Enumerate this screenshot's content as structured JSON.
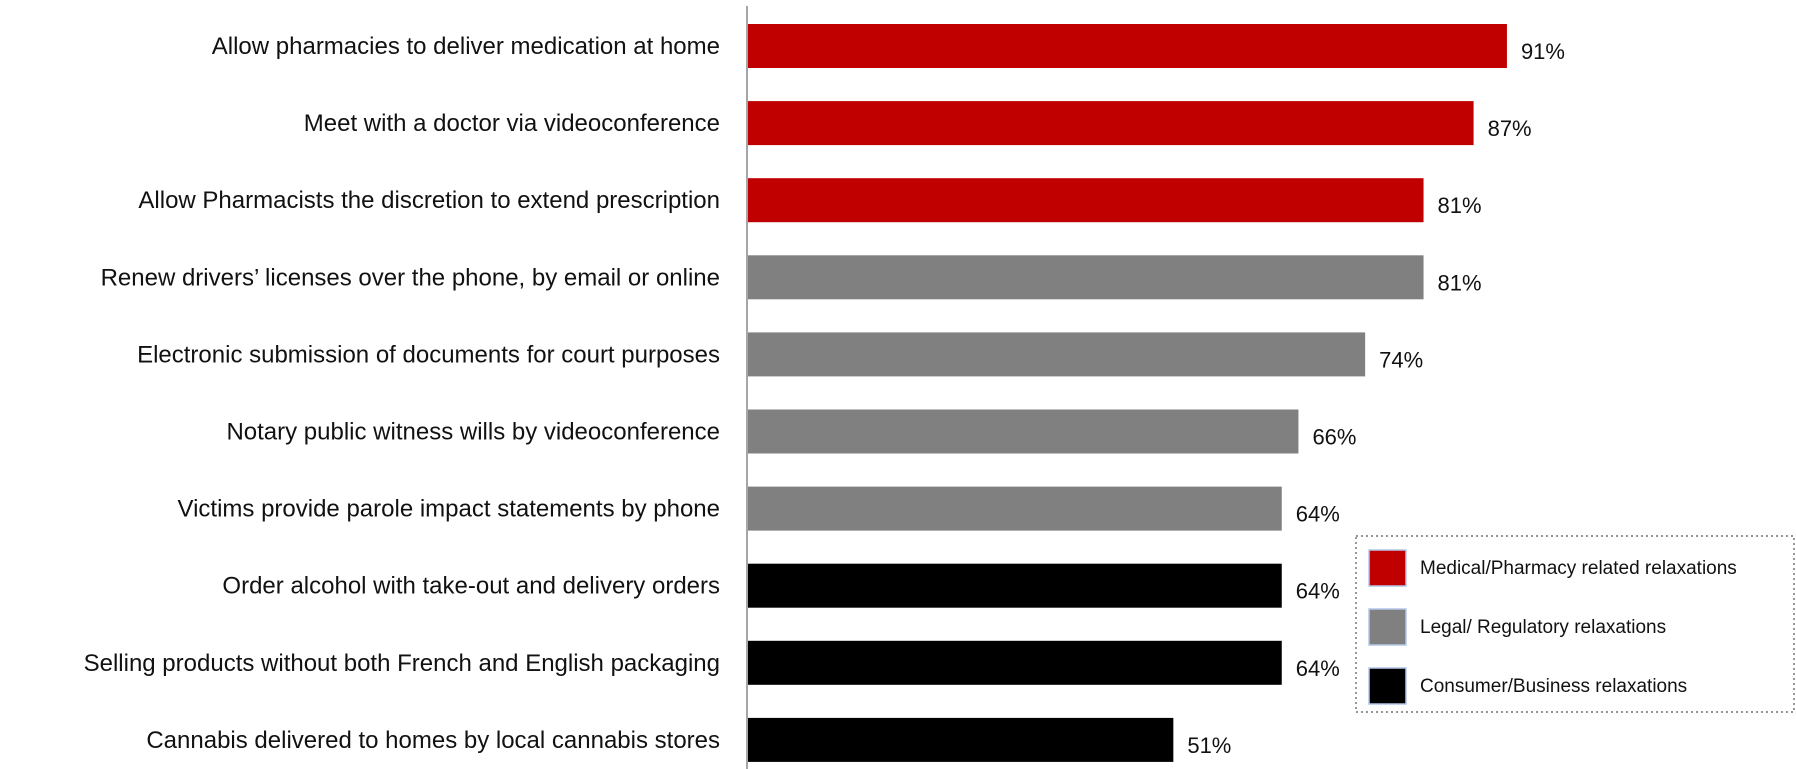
{
  "chart_data": {
    "type": "bar",
    "orientation": "horizontal",
    "categories": [
      "Allow pharmacies to deliver medication at home",
      "Meet with a doctor via videoconference",
      "Allow Pharmacists the discretion to extend prescription",
      "Renew drivers’ licenses over the phone, by email or online",
      "Electronic submission of documents for court purposes",
      "Notary public witness wills by videoconference",
      "Victims provide parole impact statements by phone",
      "Order alcohol with take-out and delivery orders",
      "Selling products without both French and English packaging",
      "Cannabis delivered to homes by local cannabis stores"
    ],
    "values": [
      91,
      87,
      81,
      81,
      74,
      66,
      64,
      64,
      64,
      51
    ],
    "value_labels": [
      "91%",
      "87%",
      "81%",
      "81%",
      "74%",
      "66%",
      "64%",
      "64%",
      "64%",
      "51%"
    ],
    "groups": [
      "medical",
      "medical",
      "medical",
      "legal",
      "legal",
      "legal",
      "legal",
      "consumer",
      "consumer",
      "consumer"
    ],
    "legend": [
      {
        "key": "medical",
        "label": "Medical/Pharmacy related relaxations",
        "color": "#C00000"
      },
      {
        "key": "legal",
        "label": "Legal/ Regulatory relaxations",
        "color": "#808080"
      },
      {
        "key": "consumer",
        "label": "Consumer/Business relaxations",
        "color": "#000000"
      }
    ],
    "legend_position": "bottom-right",
    "xlim": [
      0,
      100
    ],
    "grid": false,
    "title": "",
    "xlabel": "",
    "ylabel": ""
  }
}
